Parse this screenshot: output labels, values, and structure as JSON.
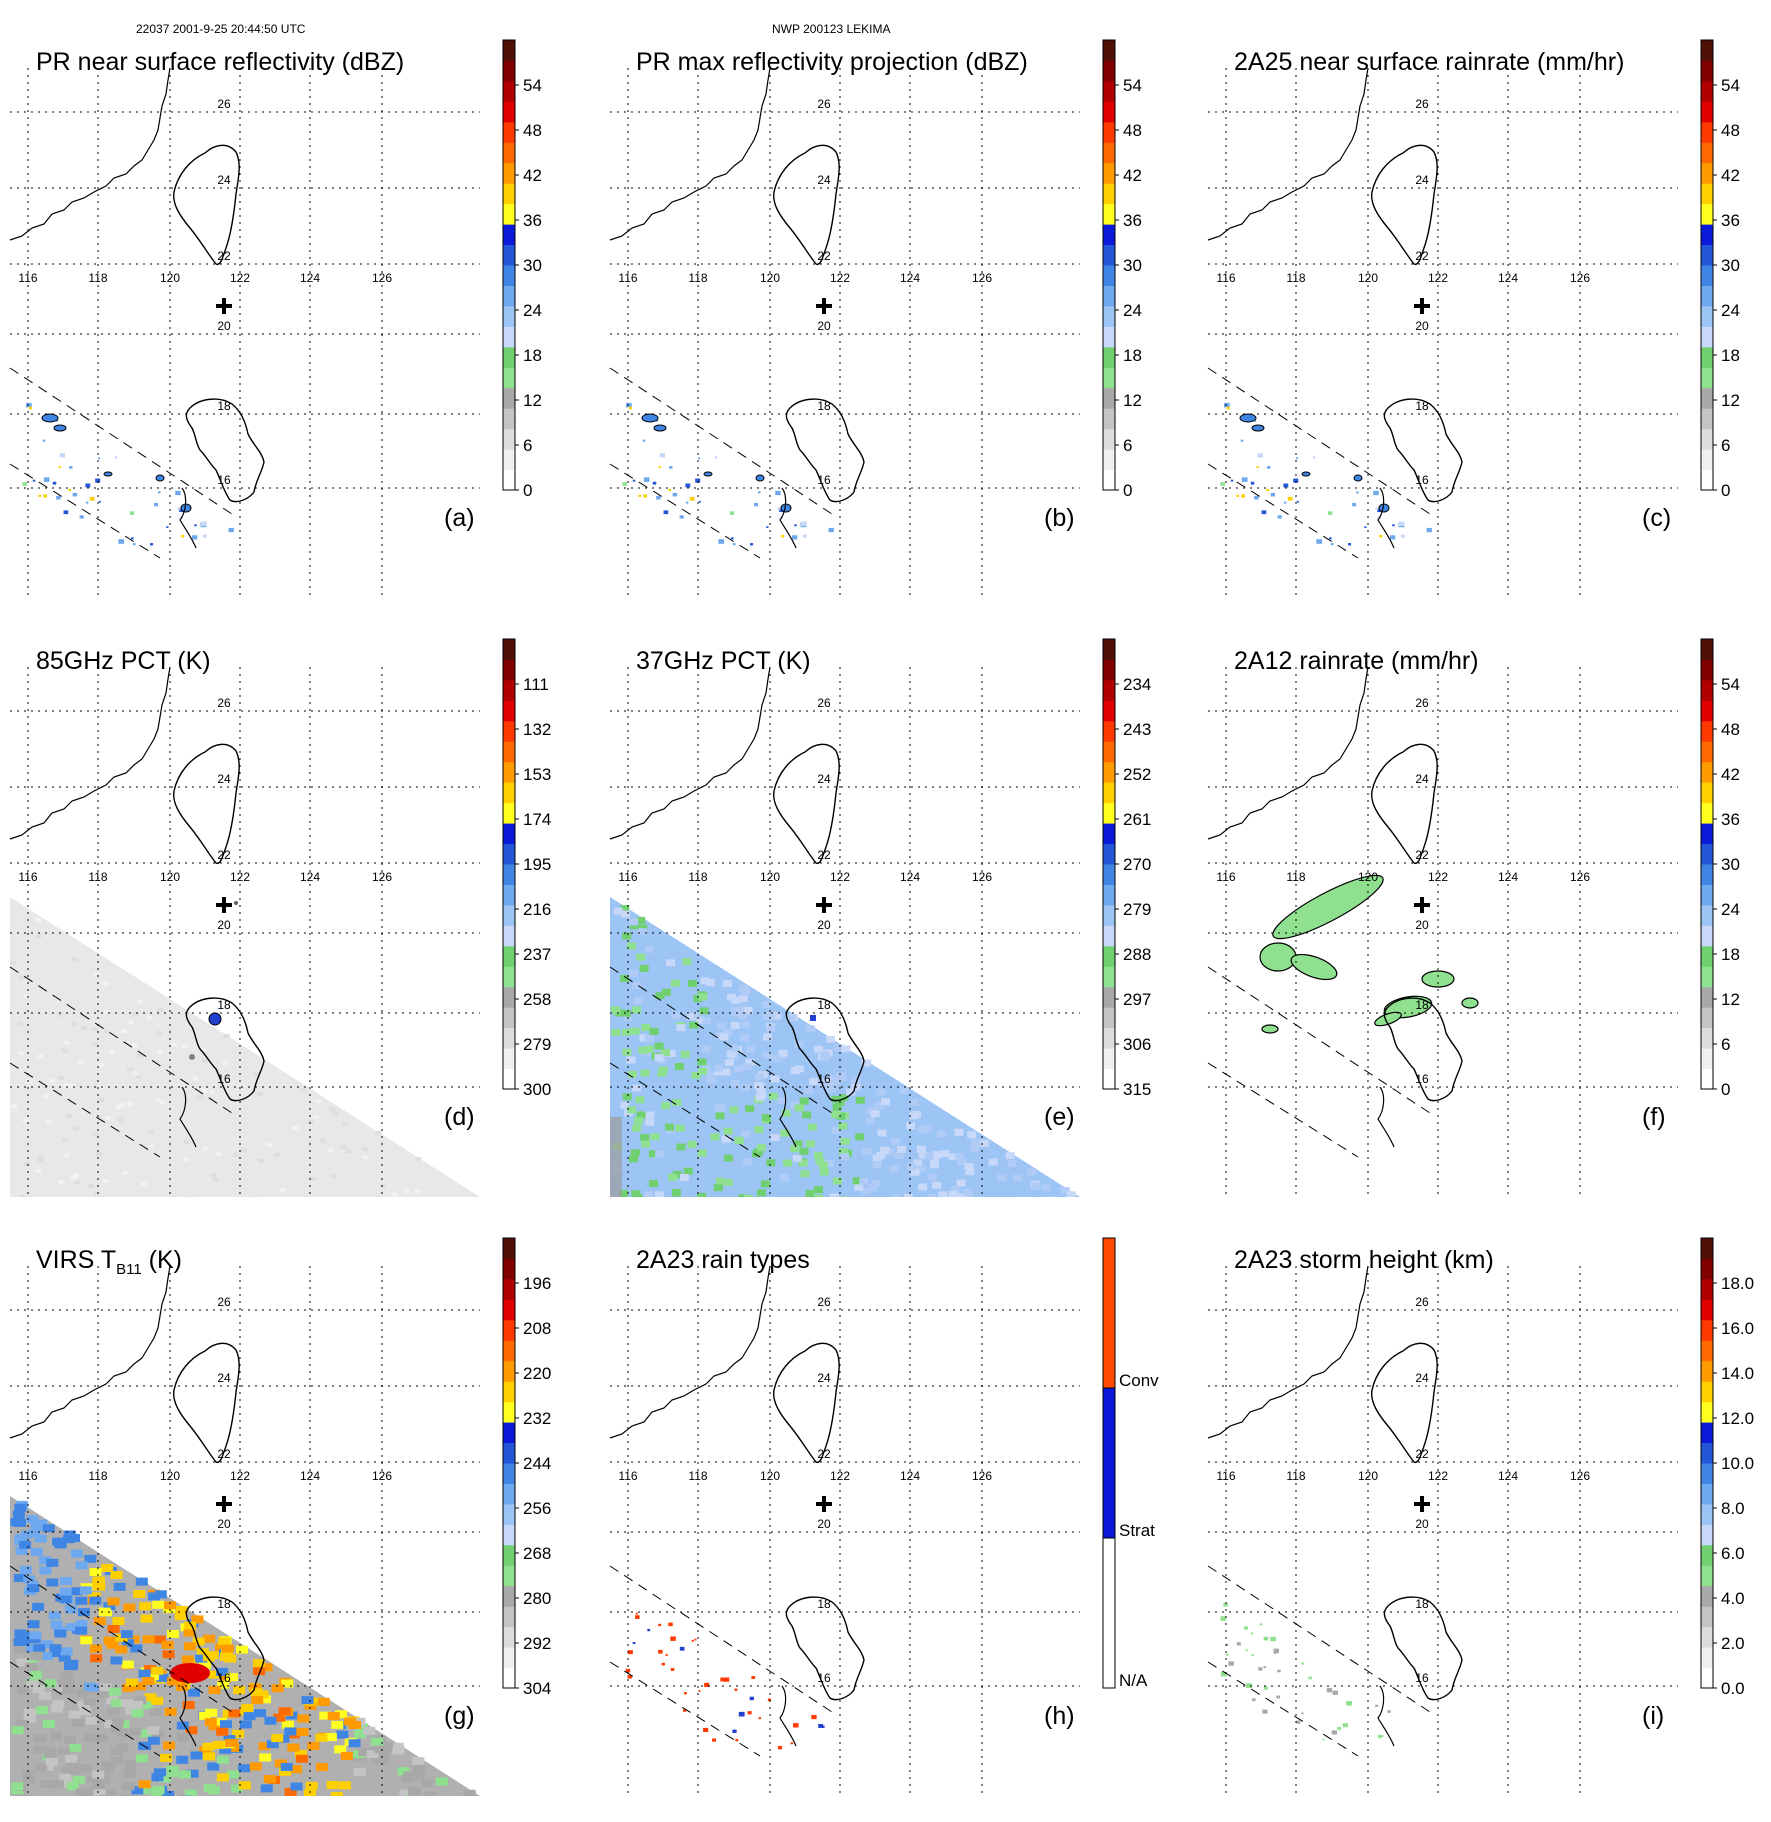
{
  "figure": {
    "header_left": "22037 2001-9-25 20:44:50 UTC",
    "header_center": "NWP 200123 LEKIMA"
  },
  "colors": {
    "grid": "#000000",
    "coast": "#000000",
    "swath": "#000000"
  },
  "chart_data": [
    {
      "id": "a",
      "type": "heatmap",
      "label": "(a)",
      "title": "PR near surface reflectivity (dBZ)",
      "colorbar": {
        "ticks": [
          "0",
          "6",
          "12",
          "18",
          "24",
          "30",
          "36",
          "42",
          "48",
          "54"
        ],
        "vmin": 0,
        "vmax": 60
      },
      "field": "pr_blobs",
      "lon_ticks": [
        "116",
        "118",
        "120",
        "122",
        "124",
        "126"
      ],
      "lat_ticks": [
        "16",
        "18",
        "20",
        "22",
        "24",
        "26"
      ]
    },
    {
      "id": "b",
      "type": "heatmap",
      "label": "(b)",
      "title": "PR max reflectivity projection (dBZ)",
      "colorbar": {
        "ticks": [
          "0",
          "6",
          "12",
          "18",
          "24",
          "30",
          "36",
          "42",
          "48",
          "54"
        ],
        "vmin": 0,
        "vmax": 60
      },
      "field": "pr_blobs",
      "lon_ticks": [
        "116",
        "118",
        "120",
        "122",
        "124",
        "126"
      ],
      "lat_ticks": [
        "16",
        "18",
        "20",
        "22",
        "24",
        "26"
      ]
    },
    {
      "id": "c",
      "type": "heatmap",
      "label": "(c)",
      "title": "2A25 near surface rainrate (mm/hr)",
      "colorbar": {
        "ticks": [
          "0",
          "6",
          "12",
          "18",
          "24",
          "30",
          "36",
          "42",
          "48",
          "54"
        ],
        "vmin": 0,
        "vmax": 60
      },
      "field": "pr_blobs",
      "lon_ticks": [
        "116",
        "118",
        "120",
        "122",
        "124",
        "126"
      ],
      "lat_ticks": [
        "16",
        "18",
        "20",
        "22",
        "24",
        "26"
      ]
    },
    {
      "id": "d",
      "type": "heatmap",
      "label": "(d)",
      "title": "85GHz PCT (K)",
      "colorbar": {
        "ticks": [
          "300",
          "279",
          "258",
          "237",
          "216",
          "195",
          "174",
          "153",
          "132",
          "111"
        ],
        "vmin": 300,
        "vmax": 90
      },
      "field": "tmi_gray",
      "lon_ticks": [
        "116",
        "118",
        "120",
        "122",
        "124",
        "126"
      ],
      "lat_ticks": [
        "16",
        "18",
        "20",
        "22",
        "24",
        "26"
      ]
    },
    {
      "id": "e",
      "type": "heatmap",
      "label": "(e)",
      "title": "37GHz PCT (K)",
      "colorbar": {
        "ticks": [
          "315",
          "306",
          "297",
          "288",
          "279",
          "270",
          "261",
          "252",
          "243",
          "234"
        ],
        "vmin": 315,
        "vmax": 225
      },
      "field": "tmi_blue",
      "lon_ticks": [
        "116",
        "118",
        "120",
        "122",
        "124",
        "126"
      ],
      "lat_ticks": [
        "16",
        "18",
        "20",
        "22",
        "24",
        "26"
      ]
    },
    {
      "id": "f",
      "type": "heatmap",
      "label": "(f)",
      "title": "2A12 rainrate (mm/hr)",
      "colorbar": {
        "ticks": [
          "0",
          "6",
          "12",
          "18",
          "24",
          "30",
          "36",
          "42",
          "48",
          "54"
        ],
        "vmin": 0,
        "vmax": 60
      },
      "field": "tmi_rain",
      "lon_ticks": [
        "116",
        "118",
        "120",
        "122",
        "124",
        "126"
      ],
      "lat_ticks": [
        "16",
        "18",
        "20",
        "22",
        "24",
        "26"
      ]
    },
    {
      "id": "g",
      "type": "heatmap",
      "label": "(g)",
      "title": "VIRS T",
      "title_sub": "B11",
      "title_unit": " (K)",
      "colorbar": {
        "ticks": [
          "304",
          "292",
          "280",
          "268",
          "256",
          "244",
          "232",
          "220",
          "208",
          "196"
        ],
        "vmin": 304,
        "vmax": 184
      },
      "field": "virs",
      "lon_ticks": [
        "116",
        "118",
        "120",
        "122",
        "124",
        "126"
      ],
      "lat_ticks": [
        "16",
        "18",
        "20",
        "22",
        "24",
        "26"
      ]
    },
    {
      "id": "h",
      "type": "heatmap",
      "label": "(h)",
      "title": "2A23 rain types",
      "colorbar": {
        "categorical": true,
        "ticks": [
          "N/A",
          "Strat",
          "Conv"
        ]
      },
      "field": "pr_types",
      "lon_ticks": [
        "116",
        "118",
        "120",
        "122",
        "124",
        "126"
      ],
      "lat_ticks": [
        "16",
        "18",
        "20",
        "22",
        "24",
        "26"
      ]
    },
    {
      "id": "i",
      "type": "heatmap",
      "label": "(i)",
      "title": "2A23 storm height (km)",
      "colorbar": {
        "ticks": [
          "0.0",
          "2.0",
          "4.0",
          "6.0",
          "8.0",
          "10.0",
          "12.0",
          "14.0",
          "16.0",
          "18.0"
        ],
        "vmin": 0,
        "vmax": 20
      },
      "field": "pr_height",
      "lon_ticks": [
        "116",
        "118",
        "120",
        "122",
        "124",
        "126"
      ],
      "lat_ticks": [
        "16",
        "18",
        "20",
        "22",
        "24",
        "26"
      ]
    }
  ]
}
